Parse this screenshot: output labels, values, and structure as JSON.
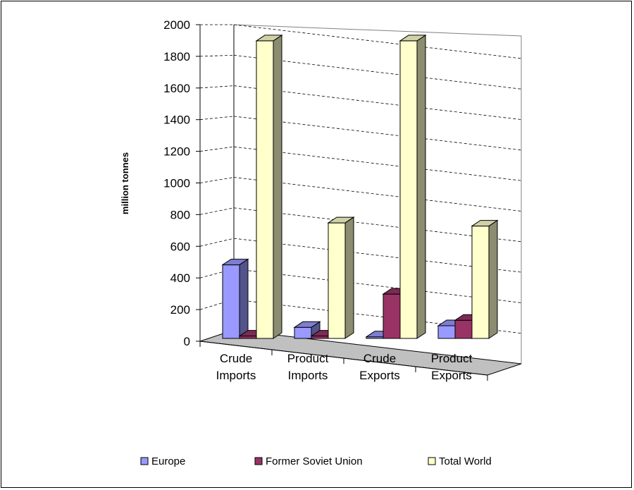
{
  "chart_data": {
    "type": "bar",
    "style": "3d-clustered-column",
    "title": "",
    "xlabel": "",
    "ylabel": "million tonnes",
    "ylim": [
      0,
      2000
    ],
    "yticks": [
      "0",
      "200",
      "400",
      "600",
      "800",
      "1000",
      "1200",
      "1400",
      "1600",
      "1800",
      "2000"
    ],
    "categories": [
      [
        "Crude",
        "Imports"
      ],
      [
        "Product",
        "Imports"
      ],
      [
        "Crude",
        "Exports"
      ],
      [
        "Product",
        "Exports"
      ]
    ],
    "series": [
      {
        "name": "Europe",
        "color": "#9999ff",
        "values": [
          465,
          70,
          10,
          80
        ]
      },
      {
        "name": "Former Soviet Union",
        "color": "#993366",
        "values": [
          15,
          15,
          280,
          115
        ]
      },
      {
        "name": "Total World",
        "color": "#ffffcc",
        "values": [
          1880,
          730,
          1880,
          710
        ]
      }
    ],
    "grid": true,
    "legend_position": "bottom"
  }
}
